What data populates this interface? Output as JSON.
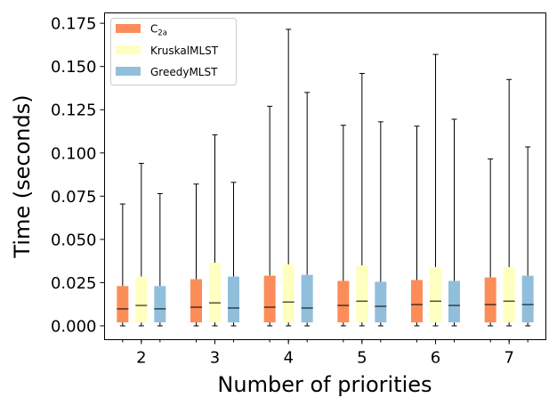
{
  "chart_data": {
    "type": "boxplot",
    "title": "",
    "xlabel": "Number of priorities",
    "ylabel": "Time (seconds)",
    "ylim": [
      -0.008,
      0.181
    ],
    "yticks": [
      0.0,
      0.025,
      0.05,
      0.075,
      0.1,
      0.125,
      0.15,
      0.175
    ],
    "ytick_labels": [
      "0.000",
      "0.025",
      "0.050",
      "0.075",
      "0.100",
      "0.125",
      "0.150",
      "0.175"
    ],
    "categories": [
      "2",
      "3",
      "4",
      "5",
      "6",
      "7"
    ],
    "legend_position": "top-left",
    "series": [
      {
        "name": "C",
        "name_subscript": "2a",
        "color": "#fc8d59",
        "boxes": [
          {
            "min": 0.0,
            "q1": 0.002,
            "median": 0.0098,
            "q3": 0.023,
            "max": 0.0705
          },
          {
            "min": 0.0,
            "q1": 0.002,
            "median": 0.0108,
            "q3": 0.027,
            "max": 0.082
          },
          {
            "min": 0.0,
            "q1": 0.002,
            "median": 0.0108,
            "q3": 0.029,
            "max": 0.127
          },
          {
            "min": 0.0,
            "q1": 0.002,
            "median": 0.0118,
            "q3": 0.026,
            "max": 0.116
          },
          {
            "min": 0.0,
            "q1": 0.002,
            "median": 0.0123,
            "q3": 0.0265,
            "max": 0.1155
          },
          {
            "min": 0.0,
            "q1": 0.002,
            "median": 0.0123,
            "q3": 0.028,
            "max": 0.0965
          }
        ]
      },
      {
        "name": "KruskalMLST",
        "name_subscript": "",
        "color": "#ffffbf",
        "boxes": [
          {
            "min": 0.0,
            "q1": 0.002,
            "median": 0.0118,
            "q3": 0.0285,
            "max": 0.094
          },
          {
            "min": 0.0,
            "q1": 0.002,
            "median": 0.0133,
            "q3": 0.0365,
            "max": 0.1105
          },
          {
            "min": 0.0,
            "q1": 0.002,
            "median": 0.0138,
            "q3": 0.0355,
            "max": 0.1715
          },
          {
            "min": 0.0,
            "q1": 0.002,
            "median": 0.0143,
            "q3": 0.035,
            "max": 0.146
          },
          {
            "min": 0.0,
            "q1": 0.002,
            "median": 0.0143,
            "q3": 0.034,
            "max": 0.157
          },
          {
            "min": 0.0,
            "q1": 0.002,
            "median": 0.0143,
            "q3": 0.034,
            "max": 0.1425
          }
        ]
      },
      {
        "name": "GreedyMLST",
        "name_subscript": "",
        "color": "#91bfdb",
        "boxes": [
          {
            "min": 0.0,
            "q1": 0.002,
            "median": 0.0098,
            "q3": 0.023,
            "max": 0.0765
          },
          {
            "min": 0.0,
            "q1": 0.002,
            "median": 0.0103,
            "q3": 0.0285,
            "max": 0.083
          },
          {
            "min": 0.0,
            "q1": 0.002,
            "median": 0.0103,
            "q3": 0.0295,
            "max": 0.135
          },
          {
            "min": 0.0,
            "q1": 0.002,
            "median": 0.0113,
            "q3": 0.0255,
            "max": 0.118
          },
          {
            "min": 0.0,
            "q1": 0.002,
            "median": 0.0118,
            "q3": 0.026,
            "max": 0.1195
          },
          {
            "min": 0.0,
            "q1": 0.002,
            "median": 0.0123,
            "q3": 0.029,
            "max": 0.1035
          }
        ]
      }
    ]
  }
}
